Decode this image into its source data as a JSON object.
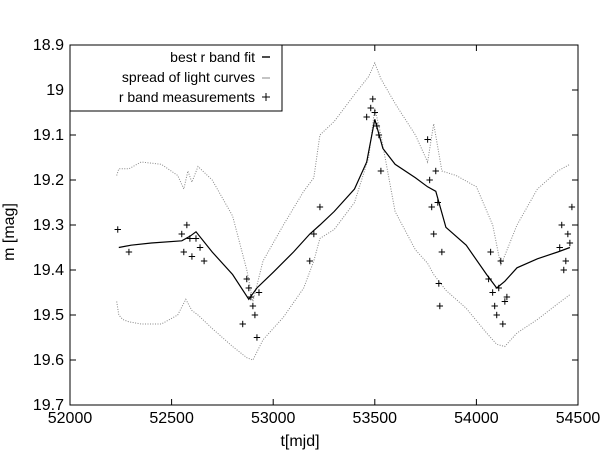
{
  "chart_data": {
    "type": "scatter",
    "title": "",
    "xlabel": "t[mjd]",
    "ylabel": "m [mag]",
    "xlim": [
      52000,
      54500
    ],
    "ylim": [
      19.7,
      18.9
    ],
    "y_inverted": true,
    "grid": false,
    "legend_position": "top-left",
    "x_ticks": [
      {
        "value": 52000,
        "label": "52000"
      },
      {
        "value": 52500,
        "label": "52500"
      },
      {
        "value": 53000,
        "label": "53000"
      },
      {
        "value": 53500,
        "label": "53500"
      },
      {
        "value": 54000,
        "label": "54000"
      },
      {
        "value": 54500,
        "label": "54500"
      }
    ],
    "y_ticks": [
      {
        "value": 18.9,
        "label": "18.9"
      },
      {
        "value": 19.0,
        "label": "19"
      },
      {
        "value": 19.1,
        "label": "19.1"
      },
      {
        "value": 19.2,
        "label": "19.2"
      },
      {
        "value": 19.3,
        "label": "19.3"
      },
      {
        "value": 19.4,
        "label": "19.4"
      },
      {
        "value": 19.5,
        "label": "19.5"
      },
      {
        "value": 19.6,
        "label": "19.6"
      },
      {
        "value": 19.7,
        "label": "19.7"
      }
    ],
    "series": [
      {
        "name": "best r band fit",
        "style": "line",
        "color": "#000000",
        "x": [
          52240,
          52300,
          52400,
          52550,
          52590,
          52620,
          52700,
          52800,
          52880,
          52920,
          53000,
          53100,
          53180,
          53230,
          53300,
          53400,
          53460,
          53500,
          53540,
          53600,
          53700,
          53760,
          53800,
          53850,
          53950,
          54050,
          54100,
          54140,
          54200,
          54300,
          54400,
          54460
        ],
        "y": [
          19.35,
          19.345,
          19.34,
          19.335,
          19.325,
          19.315,
          19.36,
          19.41,
          19.465,
          19.44,
          19.405,
          19.36,
          19.32,
          19.3,
          19.27,
          19.22,
          19.16,
          19.065,
          19.13,
          19.165,
          19.195,
          19.215,
          19.225,
          19.305,
          19.345,
          19.41,
          19.44,
          19.425,
          19.395,
          19.375,
          19.36,
          19.35
        ]
      },
      {
        "name": "spread of light curves",
        "style": "dotted-band",
        "color": "#888888",
        "upper": {
          "x": [
            52230,
            52240,
            52260,
            52290,
            52350,
            52450,
            52530,
            52560,
            52580,
            52600,
            52630,
            52700,
            52800,
            52870,
            52900,
            52950,
            53050,
            53150,
            53200,
            53230,
            53300,
            53400,
            53470,
            53500,
            53530,
            53600,
            53700,
            53760,
            53790,
            53830,
            53900,
            54000,
            54080,
            54120,
            54200,
            54300,
            54400,
            54460
          ],
          "y": [
            19.19,
            19.175,
            19.175,
            19.175,
            19.16,
            19.165,
            19.19,
            19.22,
            19.18,
            19.205,
            19.17,
            19.2,
            19.28,
            19.4,
            19.47,
            19.38,
            19.3,
            19.225,
            19.195,
            19.1,
            19.07,
            19.01,
            18.97,
            18.94,
            18.975,
            19.03,
            19.1,
            19.16,
            19.075,
            19.18,
            19.19,
            19.215,
            19.3,
            19.39,
            19.3,
            19.22,
            19.18,
            19.165
          ]
        },
        "lower": {
          "x": [
            52230,
            52240,
            52260,
            52290,
            52350,
            52450,
            52530,
            52570,
            52600,
            52630,
            52700,
            52800,
            52870,
            52900,
            52950,
            53050,
            53150,
            53200,
            53230,
            53300,
            53400,
            53470,
            53500,
            53530,
            53600,
            53700,
            53760,
            53790,
            53850,
            53950,
            54050,
            54100,
            54140,
            54200,
            54300,
            54400,
            54460
          ],
          "y": [
            19.47,
            19.5,
            19.51,
            19.515,
            19.52,
            19.52,
            19.5,
            19.465,
            19.49,
            19.5,
            19.53,
            19.57,
            19.595,
            19.6,
            19.555,
            19.505,
            19.44,
            19.38,
            19.33,
            19.31,
            19.25,
            19.15,
            19.04,
            19.1,
            19.27,
            19.355,
            19.385,
            19.41,
            19.445,
            19.485,
            19.54,
            19.565,
            19.57,
            19.54,
            19.51,
            19.475,
            19.455
          ]
        }
      },
      {
        "name": "r band measurements",
        "style": "markers",
        "marker": "+",
        "color": "#000000",
        "x": [
          52235,
          52290,
          52550,
          52560,
          52575,
          52590,
          52600,
          52620,
          52640,
          52660,
          52850,
          52870,
          52880,
          52890,
          52900,
          52910,
          52920,
          52930,
          53180,
          53200,
          53230,
          53460,
          53480,
          53490,
          53500,
          53510,
          53520,
          53530,
          53760,
          53770,
          53780,
          53790,
          53800,
          53810,
          53815,
          53820,
          53830,
          54060,
          54070,
          54080,
          54090,
          54100,
          54110,
          54120,
          54130,
          54140,
          54150,
          54410,
          54420,
          54430,
          54440,
          54450,
          54460,
          54470
        ],
        "y": [
          19.31,
          19.36,
          19.32,
          19.36,
          19.3,
          19.33,
          19.37,
          19.33,
          19.35,
          19.38,
          19.52,
          19.42,
          19.44,
          19.46,
          19.48,
          19.5,
          19.55,
          19.45,
          19.38,
          19.32,
          19.26,
          19.06,
          19.04,
          19.02,
          19.05,
          19.08,
          19.1,
          19.18,
          19.11,
          19.2,
          19.26,
          19.32,
          19.18,
          19.25,
          19.43,
          19.48,
          19.36,
          19.42,
          19.36,
          19.45,
          19.48,
          19.5,
          19.44,
          19.38,
          19.52,
          19.47,
          19.46,
          19.35,
          19.3,
          19.4,
          19.38,
          19.32,
          19.34,
          19.26
        ]
      }
    ]
  }
}
